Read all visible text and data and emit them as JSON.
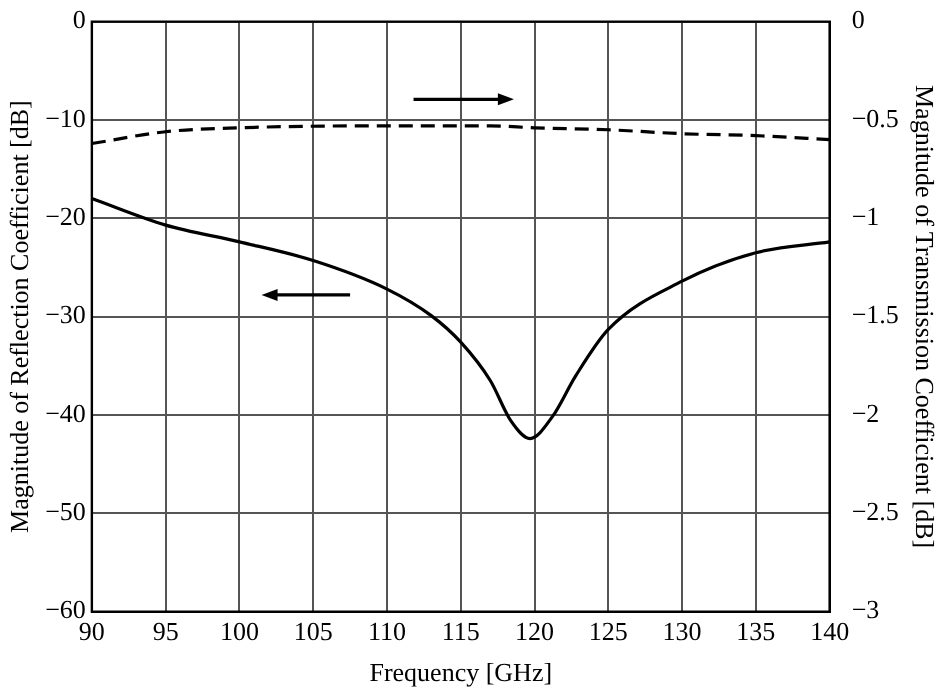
{
  "chart_data": {
    "type": "line",
    "xlabel": "Frequency [GHz]",
    "ylabel": "Magnitude of Reflection Coefficient [dB]",
    "y2label": "Magnitude of Transmission Coefficient [dB]",
    "xlim": [
      90,
      140
    ],
    "xticks": [
      90,
      95,
      100,
      105,
      110,
      115,
      120,
      125,
      130,
      135,
      140
    ],
    "ylim": [
      -60,
      0
    ],
    "yticks": [
      -60,
      -50,
      -40,
      -30,
      -20,
      -10,
      0
    ],
    "y2lim": [
      -3,
      0
    ],
    "y2ticks": [
      -3,
      -2.5,
      -2,
      -1.5,
      -1,
      -0.5,
      0
    ],
    "grid": true,
    "legend": false,
    "marker": "none",
    "series": [
      {
        "color": "#000000",
        "line_style": "solid",
        "x": [
          90,
          95,
          100,
          105,
          110,
          113,
          115,
          117,
          118.4,
          119.7,
          121.2,
          122.8,
          125,
          130,
          135,
          140
        ],
        "values": [
          -18,
          -20.7,
          -22.4,
          -24.3,
          -27.2,
          -29.9,
          -32.6,
          -36.5,
          -40.6,
          -42.4,
          -40.2,
          -36,
          -31.3,
          -26.4,
          -23.5,
          -22.4
        ]
      },
      {
        "color": "#000000",
        "line_style": "dashed",
        "axis": "y2",
        "x": [
          90,
          95,
          100,
          110,
          117,
          120,
          125,
          130,
          135,
          140
        ],
        "values": [
          -0.62,
          -0.56,
          -0.54,
          -0.53,
          -0.53,
          -0.54,
          -0.55,
          -0.57,
          -0.58,
          -0.6
        ]
      }
    ]
  }
}
